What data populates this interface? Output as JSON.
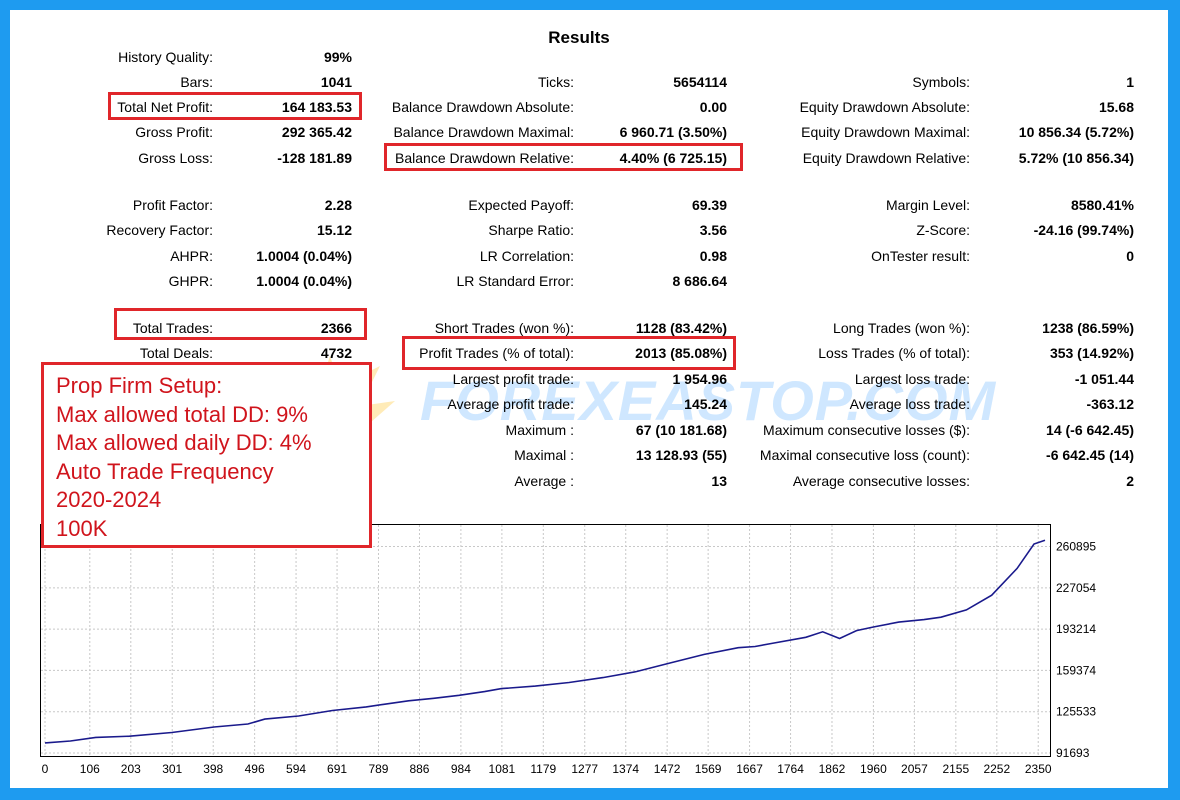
{
  "title": "Results",
  "col1": [
    {
      "label": "History Quality:",
      "value": "99%"
    },
    {
      "label": "Bars:",
      "value": "1041"
    },
    {
      "label": "Total Net Profit:",
      "value": "164 183.53"
    },
    {
      "label": "Gross Profit:",
      "value": "292 365.42"
    },
    {
      "label": "Gross Loss:",
      "value": "-128 181.89"
    },
    {
      "label": "Profit Factor:",
      "value": "2.28"
    },
    {
      "label": "Recovery Factor:",
      "value": "15.12"
    },
    {
      "label": "AHPR:",
      "value": "1.0004 (0.04%)"
    },
    {
      "label": "GHPR:",
      "value": "1.0004 (0.04%)"
    },
    {
      "label": "Total Trades:",
      "value": "2366"
    },
    {
      "label": "Total Deals:",
      "value": "4732"
    }
  ],
  "col2": [
    {
      "label": "Ticks:",
      "value": "5654114"
    },
    {
      "label": "Balance Drawdown Absolute:",
      "value": "0.00"
    },
    {
      "label": "Balance Drawdown Maximal:",
      "value": "6 960.71 (3.50%)"
    },
    {
      "label": "Balance Drawdown Relative:",
      "value": "4.40% (6 725.15)"
    },
    {
      "label": "Expected Payoff:",
      "value": "69.39"
    },
    {
      "label": "Sharpe Ratio:",
      "value": "3.56"
    },
    {
      "label": "LR Correlation:",
      "value": "0.98"
    },
    {
      "label": "LR Standard Error:",
      "value": "8 686.64"
    },
    {
      "label": "Short Trades (won %):",
      "value": "1128 (83.42%)"
    },
    {
      "label": "Profit Trades (% of total):",
      "value": "2013 (85.08%)"
    },
    {
      "label": "Largest profit trade:",
      "value": "1 954.96"
    },
    {
      "label": "Average profit trade:",
      "value": "145.24"
    },
    {
      "label": "Maximum :",
      "value": "67 (10 181.68)"
    },
    {
      "label": "Maximal :",
      "value": "13 128.93 (55)"
    },
    {
      "label": "Average :",
      "value": "13"
    }
  ],
  "col3": [
    {
      "label": "Symbols:",
      "value": "1"
    },
    {
      "label": "Equity Drawdown Absolute:",
      "value": "15.68"
    },
    {
      "label": "Equity Drawdown Maximal:",
      "value": "10 856.34 (5.72%)"
    },
    {
      "label": "Equity Drawdown Relative:",
      "value": "5.72% (10 856.34)"
    },
    {
      "label": "Margin Level:",
      "value": "8580.41%"
    },
    {
      "label": "Z-Score:",
      "value": "-24.16 (99.74%)"
    },
    {
      "label": "OnTester result:",
      "value": "0"
    },
    {
      "label": "Long Trades (won %):",
      "value": "1238 (86.59%)"
    },
    {
      "label": "Loss Trades (% of total):",
      "value": "353 (14.92%)"
    },
    {
      "label": "Largest loss trade:",
      "value": "-1 051.44"
    },
    {
      "label": "Average loss trade:",
      "value": "-363.12"
    },
    {
      "label": "Maximum consecutive losses ($):",
      "value": "14 (-6 642.45)"
    },
    {
      "label": "Maximal consecutive loss (count):",
      "value": "-6 642.45 (14)"
    },
    {
      "label": "Average consecutive losses:",
      "value": "2"
    }
  ],
  "watermark": "FOREXEASTOP.COM",
  "note_lines": [
    "Prop Firm Setup:",
    "Max allowed total DD: 9%",
    "Max allowed daily DD: 4%",
    "Auto Trade Frequency",
    "2020-2024",
    "100K"
  ],
  "colors": {
    "frame": "#1e9bf0",
    "highlight": "#e0262a",
    "note_text": "#d0141c",
    "line": "#1a1a8c"
  },
  "chart_data": {
    "type": "line",
    "x_ticks": [
      0,
      106,
      203,
      301,
      398,
      496,
      594,
      691,
      789,
      886,
      984,
      1081,
      1179,
      1277,
      1374,
      1472,
      1569,
      1667,
      1764,
      1862,
      1960,
      2057,
      2155,
      2252,
      2350
    ],
    "y_ticks": [
      91693,
      125533,
      159374,
      193214,
      227054,
      260895
    ],
    "xlim": [
      0,
      2366
    ],
    "ylim": [
      91693,
      272000
    ],
    "series": [
      {
        "x": [
          0,
          60,
          120,
          200,
          300,
          400,
          480,
          520,
          600,
          680,
          760,
          800,
          860,
          920,
          980,
          1040,
          1080,
          1160,
          1240,
          1320,
          1400,
          1480,
          1560,
          1640,
          1680,
          1720,
          1800,
          1840,
          1880,
          1920,
          1960,
          2020,
          2080,
          2120,
          2180,
          2240,
          2300,
          2340,
          2366
        ],
        "y": [
          100000,
          101500,
          104500,
          105500,
          108500,
          113000,
          115500,
          119500,
          122000,
          126500,
          129500,
          131500,
          134500,
          136500,
          139000,
          142000,
          144500,
          146500,
          149500,
          153500,
          158500,
          165500,
          172500,
          178000,
          179000,
          181500,
          186500,
          191000,
          185500,
          192000,
          195000,
          199000,
          201000,
          203000,
          209000,
          221000,
          243000,
          263000,
          266000
        ]
      }
    ]
  }
}
